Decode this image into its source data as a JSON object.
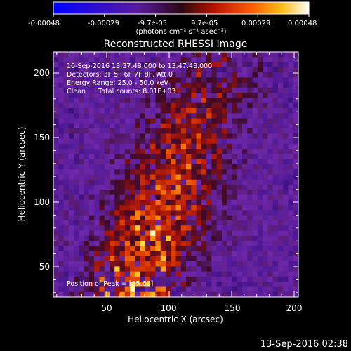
{
  "colorbar": {
    "tick_labels": [
      "-0.00048",
      "-0.00029",
      "-9.7e-05",
      "9.7e-05",
      "0.00029",
      "0.00048"
    ],
    "units": "(photons cm⁻² s⁻¹ asec⁻²)"
  },
  "image": {
    "title": "Reconstructed RHESSI Image",
    "info": [
      "10-Sep-2016 13:37:48.000 to 13:47:48.000",
      "Detectors: 3F 5F 6F 7F 8F, Att 0",
      "Energy Range: 25.0 - 50.0 keV",
      "Clean      Total counts: 8.01E+03"
    ],
    "peak": "Position of Peak = [85,60]",
    "xlabel": "Heliocentric X (arcsec)",
    "ylabel": "Heliocentric Y (arcsec)",
    "x_ticks": [
      "50",
      "100",
      "150",
      "200"
    ],
    "y_ticks": [
      "50",
      "100",
      "150",
      "200"
    ],
    "timestamp": "13-Sep-2016 02:38"
  }
}
